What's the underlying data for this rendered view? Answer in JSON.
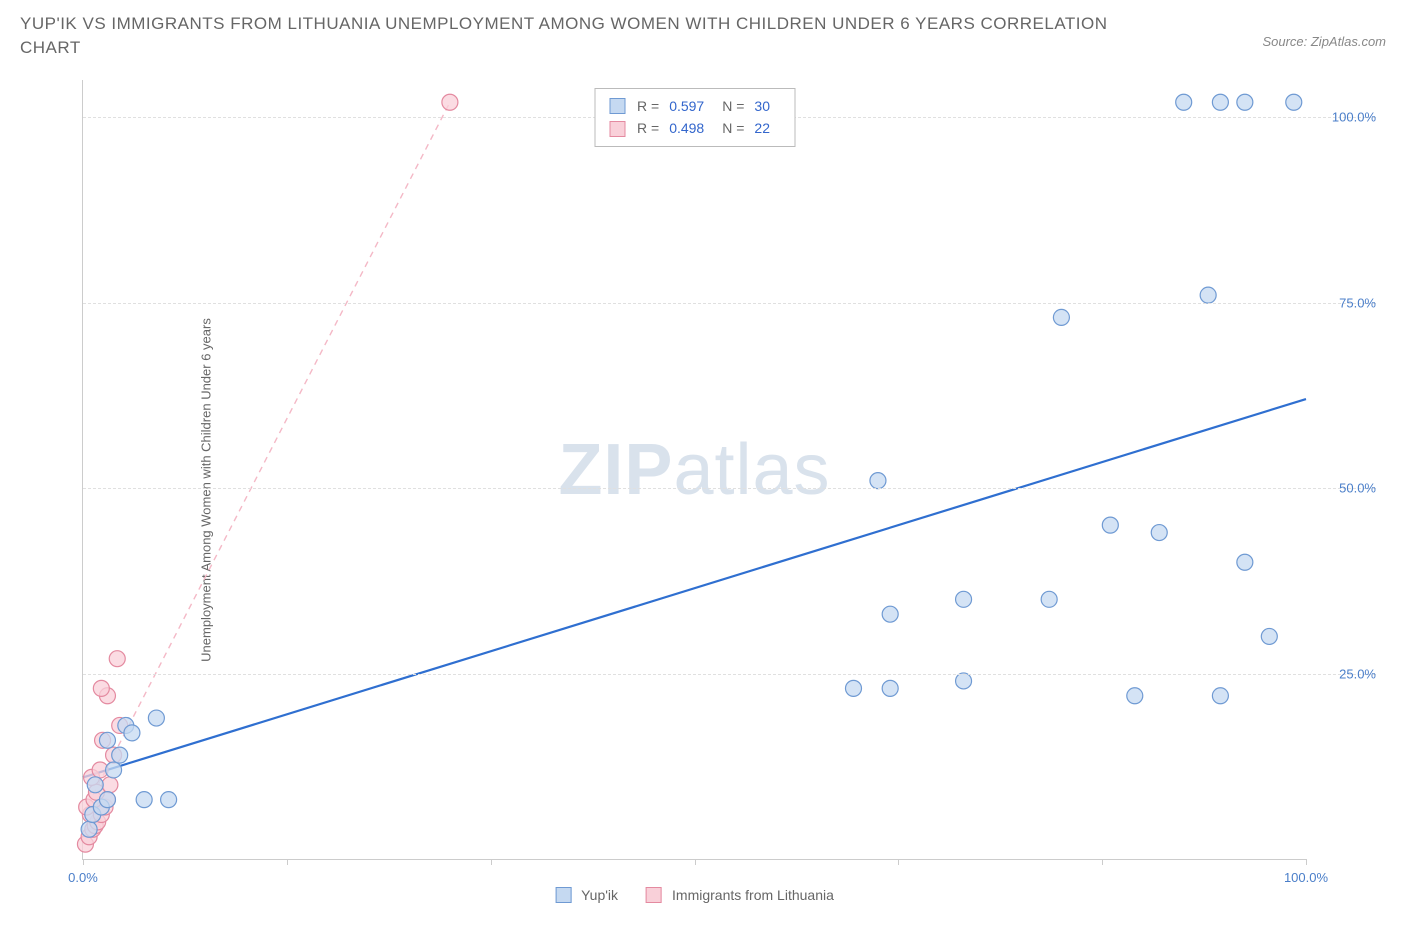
{
  "title": "YUP'IK VS IMMIGRANTS FROM LITHUANIA UNEMPLOYMENT AMONG WOMEN WITH CHILDREN UNDER 6 YEARS CORRELATION CHART",
  "source": "Source: ZipAtlas.com",
  "watermark_zip": "ZIP",
  "watermark_atlas": "atlas",
  "y_axis_label": "Unemployment Among Women with Children Under 6 years",
  "chart": {
    "type": "scatter",
    "xlim": [
      0,
      100
    ],
    "ylim": [
      0,
      105
    ],
    "x_ticks": [
      0,
      16.67,
      33.33,
      50,
      66.67,
      83.33,
      100
    ],
    "x_tick_labels": {
      "0": "0.0%",
      "100": "100.0%"
    },
    "y_ticks": [
      25,
      50,
      75,
      100
    ],
    "y_tick_labels": [
      "25.0%",
      "50.0%",
      "75.0%",
      "100.0%"
    ],
    "grid_color": "#e0e0e0",
    "axis_color": "#cccccc",
    "background_color": "#ffffff",
    "marker_radius": 8,
    "marker_stroke_width": 1.2,
    "series": [
      {
        "name": "Yup'ik",
        "fill": "#c5d9f1",
        "stroke": "#6f9ad3",
        "line_color": "#2f6fd0",
        "line_style": "solid",
        "line_width": 2.2,
        "stats": {
          "R_label": "R =",
          "R": "0.597",
          "N_label": "N =",
          "N": "30"
        },
        "trend": {
          "x1": 0,
          "y1": 11,
          "x2": 100,
          "y2": 62
        },
        "points": [
          [
            0.5,
            4
          ],
          [
            0.8,
            6
          ],
          [
            1.5,
            7
          ],
          [
            2,
            8
          ],
          [
            1,
            10
          ],
          [
            2.5,
            12
          ],
          [
            3,
            14
          ],
          [
            2,
            16
          ],
          [
            3.5,
            18
          ],
          [
            5,
            8
          ],
          [
            7,
            8
          ],
          [
            6,
            19
          ],
          [
            4,
            17
          ],
          [
            63,
            23
          ],
          [
            66,
            23
          ],
          [
            72,
            24
          ],
          [
            66,
            33
          ],
          [
            72,
            35
          ],
          [
            79,
            35
          ],
          [
            86,
            22
          ],
          [
            93,
            22
          ],
          [
            84,
            45
          ],
          [
            88,
            44
          ],
          [
            95,
            40
          ],
          [
            97,
            30
          ],
          [
            80,
            73
          ],
          [
            92,
            76
          ],
          [
            65,
            51
          ],
          [
            90,
            102
          ],
          [
            93,
            102
          ]
        ],
        "extra_points_top": [
          [
            95,
            102
          ],
          [
            99,
            102
          ]
        ]
      },
      {
        "name": "Immigrants from Lithuania",
        "fill": "#f9d0d9",
        "stroke": "#e48aa0",
        "line_color": "#f4b8c6",
        "line_style": "dashed",
        "line_width": 1.4,
        "stats": {
          "R_label": "R =",
          "R": "0.498",
          "N_label": "N =",
          "N": "22"
        },
        "trend": {
          "x1": 0,
          "y1": 6,
          "x2": 30,
          "y2": 102
        },
        "points": [
          [
            0.2,
            2
          ],
          [
            0.5,
            3
          ],
          [
            0.8,
            4
          ],
          [
            1,
            4.5
          ],
          [
            1.2,
            5
          ],
          [
            0.6,
            6
          ],
          [
            1.5,
            6
          ],
          [
            0.3,
            7
          ],
          [
            1.8,
            7
          ],
          [
            0.9,
            8
          ],
          [
            2,
            8
          ],
          [
            1.1,
            9
          ],
          [
            2.2,
            10
          ],
          [
            0.7,
            11
          ],
          [
            1.4,
            12
          ],
          [
            2.5,
            14
          ],
          [
            1.6,
            16
          ],
          [
            3,
            18
          ],
          [
            2,
            22
          ],
          [
            1.5,
            23
          ],
          [
            2.8,
            27
          ],
          [
            30,
            102
          ]
        ]
      }
    ]
  },
  "legend": {
    "items": [
      {
        "label": "Yup'ik",
        "fill": "#c5d9f1",
        "stroke": "#6f9ad3"
      },
      {
        "label": "Immigrants from Lithuania",
        "fill": "#f9d0d9",
        "stroke": "#e48aa0"
      }
    ]
  }
}
